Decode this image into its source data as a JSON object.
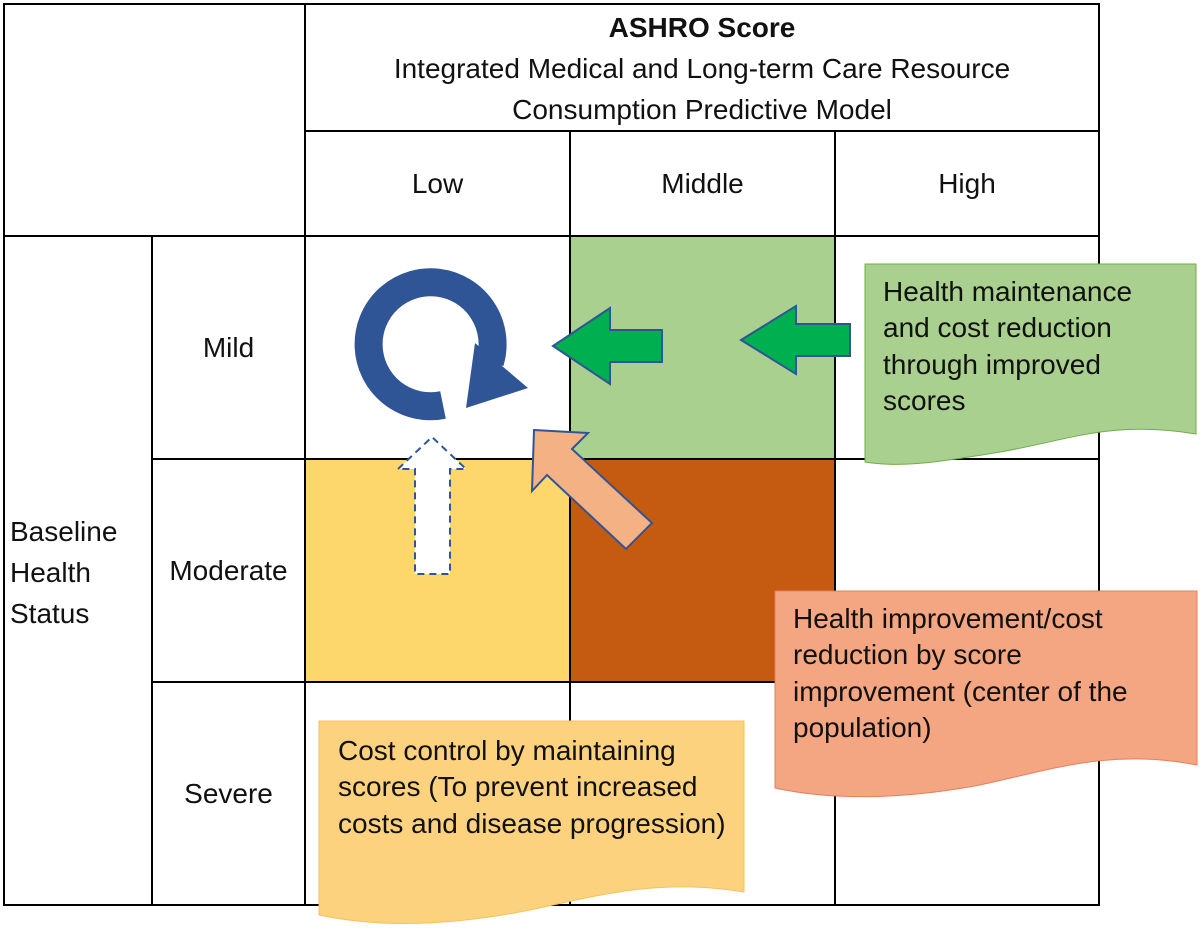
{
  "header": {
    "title": "ASHRO Score",
    "subtitle": "Integrated Medical and Long-term Care Resource Consumption Predictive Model"
  },
  "columns": [
    "Low",
    "Middle",
    "High"
  ],
  "row_group_label": "Baseline Health Status",
  "rows": [
    "Mild",
    "Moderate",
    "Severe"
  ],
  "cell_colors": {
    "mild_middle": "#A9D08E",
    "moderate_low": "#FDD76B",
    "moderate_middle": "#C55A11"
  },
  "notes": {
    "green": "Health maintenance and cost reduction through improved scores",
    "orange": "Health improvement/cost reduction by score improvement (center of the population)",
    "yellow": "Cost control by maintaining scores (To prevent increased costs and disease progression)"
  },
  "note_colors": {
    "green": "#A9D08E",
    "orange": "#F4A582",
    "yellow": "#FDD27F"
  },
  "arrow_colors": {
    "cycle": "#2F5597",
    "green": "#00B050",
    "salmon": "#F4B183"
  },
  "icons": [
    "cycle-arrow-icon",
    "left-arrow-icon",
    "up-arrow-icon",
    "diagonal-arrow-icon"
  ]
}
